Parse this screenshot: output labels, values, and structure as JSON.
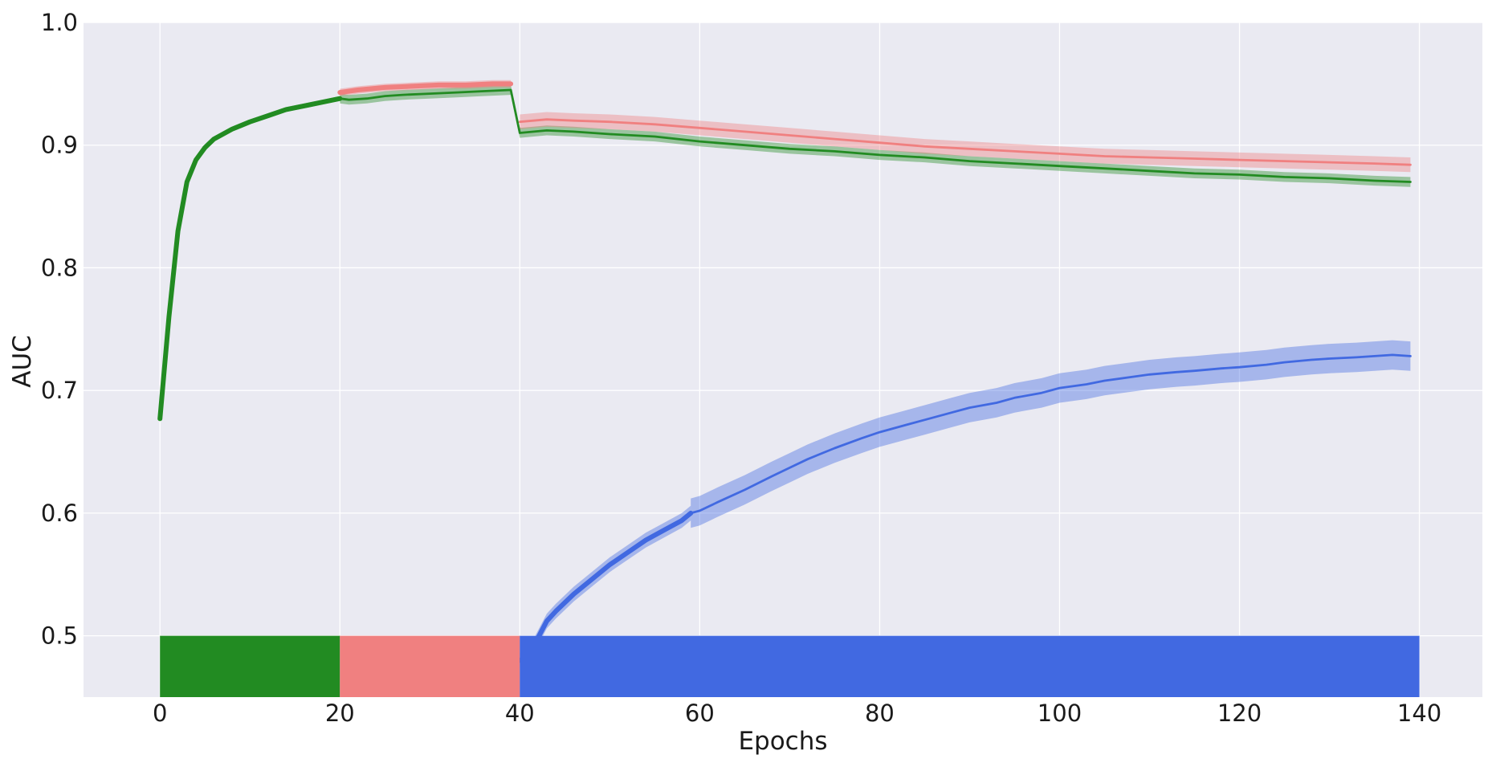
{
  "chart_data": {
    "type": "line",
    "title": "",
    "xlabel": "Epochs",
    "ylabel": "AUC",
    "xlim": [
      -8.5,
      147
    ],
    "ylim": [
      0.45,
      1.0
    ],
    "grid": true,
    "background": "#eaeaf2",
    "xticks": [
      0,
      20,
      40,
      60,
      80,
      100,
      120,
      140
    ],
    "yticks": [
      0.5,
      0.6,
      0.7,
      0.8,
      0.9,
      1.0
    ],
    "xtick_labels": [
      "0",
      "20",
      "40",
      "60",
      "80",
      "100",
      "120",
      "140"
    ],
    "ytick_labels": [
      "0.5",
      "0.6",
      "0.7",
      "0.8",
      "0.9",
      "1.0"
    ],
    "colors": {
      "green": "#228b22",
      "red": "#f08080",
      "blue": "#4169e1"
    },
    "phases": [
      {
        "color": "#228b22",
        "x_start": 0,
        "x_end": 20
      },
      {
        "color": "#f08080",
        "x_start": 20,
        "x_end": 40
      },
      {
        "color": "#4169e1",
        "x_start": 40,
        "x_end": 140
      }
    ],
    "phase_band_ylim": [
      0.45,
      0.5
    ],
    "series": [
      {
        "color": "#228b22",
        "band": 0.004,
        "segments": [
          {
            "thick": true,
            "points": [
              [
                0,
                0.677
              ],
              [
                1,
                0.76
              ],
              [
                2,
                0.83
              ],
              [
                3,
                0.87
              ],
              [
                4,
                0.888
              ],
              [
                5,
                0.898
              ],
              [
                6,
                0.905
              ],
              [
                7,
                0.909
              ],
              [
                8,
                0.913
              ],
              [
                9,
                0.916
              ],
              [
                10,
                0.919
              ],
              [
                12,
                0.924
              ],
              [
                14,
                0.929
              ],
              [
                16,
                0.932
              ],
              [
                18,
                0.935
              ],
              [
                20,
                0.938
              ]
            ]
          },
          {
            "thick": false,
            "points": [
              [
                20,
                0.938
              ],
              [
                21,
                0.937
              ],
              [
                23,
                0.938
              ],
              [
                25,
                0.94
              ],
              [
                27,
                0.941
              ],
              [
                30,
                0.942
              ],
              [
                33,
                0.943
              ],
              [
                36,
                0.944
              ],
              [
                39,
                0.945
              ],
              [
                40,
                0.91
              ],
              [
                43,
                0.912
              ],
              [
                46,
                0.911
              ],
              [
                50,
                0.909
              ],
              [
                55,
                0.907
              ],
              [
                60,
                0.903
              ],
              [
                65,
                0.9
              ],
              [
                70,
                0.897
              ],
              [
                75,
                0.895
              ],
              [
                80,
                0.892
              ],
              [
                85,
                0.89
              ],
              [
                90,
                0.887
              ],
              [
                95,
                0.885
              ],
              [
                100,
                0.883
              ],
              [
                105,
                0.881
              ],
              [
                110,
                0.879
              ],
              [
                115,
                0.877
              ],
              [
                120,
                0.876
              ],
              [
                125,
                0.874
              ],
              [
                130,
                0.873
              ],
              [
                135,
                0.871
              ],
              [
                139,
                0.87
              ]
            ]
          }
        ]
      },
      {
        "color": "#f08080",
        "band": 0.006,
        "segments": [
          {
            "thick": true,
            "points": [
              [
                20,
                0.943
              ],
              [
                22,
                0.945
              ],
              [
                25,
                0.947
              ],
              [
                28,
                0.948
              ],
              [
                31,
                0.949
              ],
              [
                34,
                0.949
              ],
              [
                37,
                0.95
              ],
              [
                39,
                0.95
              ]
            ]
          },
          {
            "thick": false,
            "points": [
              [
                40,
                0.919
              ],
              [
                43,
                0.921
              ],
              [
                46,
                0.92
              ],
              [
                50,
                0.919
              ],
              [
                55,
                0.917
              ],
              [
                60,
                0.914
              ],
              [
                65,
                0.911
              ],
              [
                70,
                0.908
              ],
              [
                75,
                0.905
              ],
              [
                80,
                0.902
              ],
              [
                85,
                0.899
              ],
              [
                90,
                0.897
              ],
              [
                95,
                0.895
              ],
              [
                100,
                0.893
              ],
              [
                105,
                0.891
              ],
              [
                110,
                0.89
              ],
              [
                115,
                0.889
              ],
              [
                120,
                0.888
              ],
              [
                125,
                0.887
              ],
              [
                130,
                0.886
              ],
              [
                135,
                0.885
              ],
              [
                139,
                0.884
              ]
            ]
          }
        ]
      },
      {
        "color": "#4169e1",
        "band": 0.012,
        "segments": [
          {
            "thick": true,
            "points": [
              [
                40,
                0.48
              ],
              [
                41,
                0.484
              ],
              [
                42,
                0.498
              ],
              [
                43,
                0.512
              ],
              [
                44,
                0.52
              ],
              [
                46,
                0.534
              ],
              [
                48,
                0.546
              ],
              [
                50,
                0.558
              ],
              [
                52,
                0.568
              ],
              [
                54,
                0.578
              ],
              [
                56,
                0.586
              ],
              [
                58,
                0.594
              ],
              [
                59,
                0.6
              ]
            ]
          },
          {
            "thick": false,
            "points": [
              [
                59,
                0.6
              ],
              [
                60,
                0.602
              ],
              [
                62,
                0.609
              ],
              [
                65,
                0.619
              ],
              [
                68,
                0.63
              ],
              [
                70,
                0.637
              ],
              [
                72,
                0.644
              ],
              [
                75,
                0.653
              ],
              [
                78,
                0.661
              ],
              [
                80,
                0.666
              ],
              [
                83,
                0.672
              ],
              [
                85,
                0.676
              ],
              [
                88,
                0.682
              ],
              [
                90,
                0.686
              ],
              [
                93,
                0.69
              ],
              [
                95,
                0.694
              ],
              [
                98,
                0.698
              ],
              [
                100,
                0.702
              ],
              [
                103,
                0.705
              ],
              [
                105,
                0.708
              ],
              [
                108,
                0.711
              ],
              [
                110,
                0.713
              ],
              [
                113,
                0.715
              ],
              [
                115,
                0.716
              ],
              [
                118,
                0.718
              ],
              [
                120,
                0.719
              ],
              [
                123,
                0.721
              ],
              [
                125,
                0.723
              ],
              [
                128,
                0.725
              ],
              [
                130,
                0.726
              ],
              [
                133,
                0.727
              ],
              [
                135,
                0.728
              ],
              [
                137,
                0.729
              ],
              [
                139,
                0.728
              ]
            ]
          }
        ]
      }
    ]
  }
}
